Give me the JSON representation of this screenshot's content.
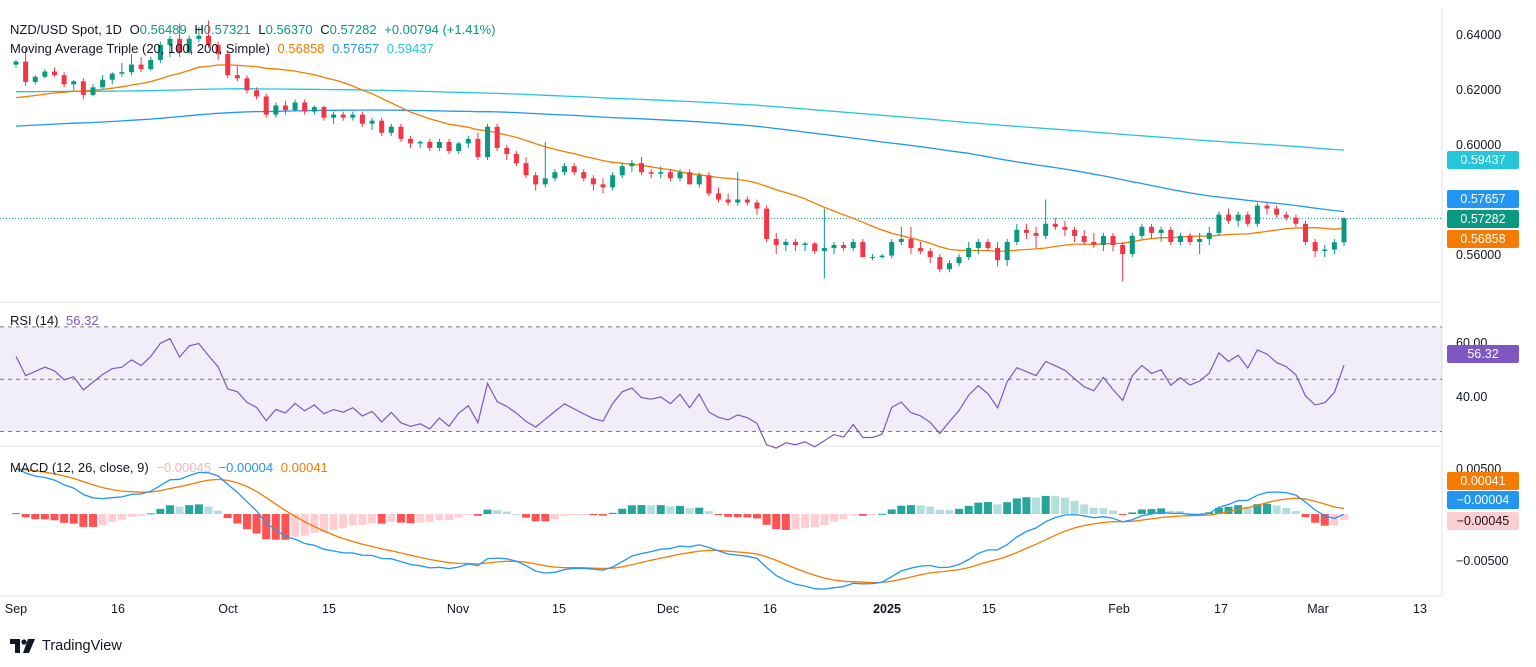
{
  "header": {
    "symbol": "NZD/USD Spot, 1D",
    "o_label": "O",
    "open": "0.56489",
    "h_label": "H",
    "high": "0.57321",
    "l_label": "L",
    "low": "0.56370",
    "c_label": "C",
    "close": "0.57282",
    "change": "+0.00794 (+1.41%)",
    "ma_label": "Moving Average Triple (20, 100, 200, Simple)",
    "ma20": "0.56858",
    "ma100": "0.57657",
    "ma200": "0.59437",
    "rsi_label": "RSI (14)",
    "rsi_value": "56.32",
    "macd_label": "MACD (12, 26, close, 9)",
    "macd_hist": "−0.00045",
    "macd_line": "−0.00004",
    "macd_signal": "0.00041"
  },
  "colors": {
    "up": "#089981",
    "down": "#f23645",
    "ma20": "#f57c00",
    "ma100": "#2196f3",
    "ma200": "#26c6da",
    "rsi": "#7e57c2",
    "macd": "#2196f3",
    "signal": "#f57c00",
    "hist_up_strong": "#26a69a",
    "hist_up_weak": "#b2dfdb",
    "hist_dn_strong": "#ff5252",
    "hist_dn_weak": "#ffcdd2"
  },
  "axes": {
    "price_ticks": [
      "0.64000",
      "0.62000",
      "0.60000",
      "0.56000"
    ],
    "rsi_ticks": [
      "60.00",
      "40.00"
    ],
    "macd_ticks": [
      "0.00500",
      "−0.00500"
    ],
    "x_ticks": [
      "Sep",
      "16",
      "Oct",
      "15",
      "Nov",
      "15",
      "Dec",
      "16",
      "2025",
      "15",
      "Feb",
      "17",
      "Mar",
      "13"
    ],
    "price_range": [
      0.5485,
      0.6415
    ],
    "rsi_range": [
      26,
      78
    ],
    "macd_range": [
      -0.0078,
      0.0062
    ]
  },
  "badges": {
    "ma200": "0.59437",
    "ma100": "0.57657",
    "close": "0.57282",
    "ma20": "0.56858",
    "rsi": "56.32",
    "signal": "0.00041",
    "macd": "−0.00004",
    "hist": "−0.00045"
  },
  "footer": {
    "brand": "TradingView"
  },
  "chart_data": {
    "type": "candlestick",
    "title": "NZD/USD Spot, 1D",
    "x_dates": [
      "Sep",
      "",
      "",
      "",
      "",
      "",
      "",
      "",
      "",
      "16",
      "",
      "",
      "",
      "",
      "",
      "",
      "",
      "",
      "",
      "",
      "Oct",
      "",
      "",
      "",
      "",
      "",
      "",
      "",
      "",
      "15",
      "",
      "",
      "",
      "",
      "",
      "",
      "",
      "",
      "",
      "",
      "",
      "",
      "Nov",
      "",
      "",
      "",
      "",
      "",
      "",
      "",
      "",
      "15",
      "",
      "",
      "",
      "",
      "",
      "",
      "",
      "",
      "",
      "Dec",
      "",
      "",
      "",
      "",
      "",
      "",
      "",
      "",
      "",
      "",
      "16",
      "",
      "",
      "",
      "",
      "",
      "",
      "",
      "",
      "",
      "",
      "",
      "",
      "2025",
      "",
      "",
      "",
      "",
      "",
      "",
      "",
      "",
      "15",
      "",
      "",
      "",
      "",
      "",
      "",
      "",
      "",
      "",
      "",
      "",
      "Feb",
      "",
      "",
      "",
      "",
      "",
      "",
      "",
      "",
      "17",
      "",
      "",
      "",
      "",
      "",
      "",
      "",
      "",
      "",
      "Mar"
    ],
    "ohlc": [
      [
        0.6235,
        0.625,
        0.6225,
        0.6245
      ],
      [
        0.6245,
        0.629,
        0.6165,
        0.6178
      ],
      [
        0.6178,
        0.62,
        0.617,
        0.6195
      ],
      [
        0.6195,
        0.622,
        0.619,
        0.6212
      ],
      [
        0.6212,
        0.6225,
        0.6195,
        0.62
      ],
      [
        0.62,
        0.621,
        0.616,
        0.617
      ],
      [
        0.617,
        0.6185,
        0.615,
        0.618
      ],
      [
        0.618,
        0.619,
        0.612,
        0.6135
      ],
      [
        0.6135,
        0.617,
        0.613,
        0.616
      ],
      [
        0.616,
        0.62,
        0.6155,
        0.6185
      ],
      [
        0.6185,
        0.621,
        0.617,
        0.6205
      ],
      [
        0.6205,
        0.624,
        0.6195,
        0.621
      ],
      [
        0.621,
        0.627,
        0.62,
        0.6235
      ],
      [
        0.6235,
        0.626,
        0.621,
        0.622
      ],
      [
        0.622,
        0.626,
        0.6215,
        0.625
      ],
      [
        0.625,
        0.631,
        0.624,
        0.63
      ],
      [
        0.63,
        0.633,
        0.626,
        0.632
      ],
      [
        0.632,
        0.637,
        0.626,
        0.6275
      ],
      [
        0.6275,
        0.633,
        0.627,
        0.632
      ],
      [
        0.632,
        0.636,
        0.631,
        0.633
      ],
      [
        0.633,
        0.638,
        0.629,
        0.63
      ],
      [
        0.63,
        0.631,
        0.625,
        0.627
      ],
      [
        0.627,
        0.628,
        0.619,
        0.62
      ],
      [
        0.62,
        0.623,
        0.618,
        0.619
      ],
      [
        0.619,
        0.62,
        0.614,
        0.615
      ],
      [
        0.615,
        0.616,
        0.612,
        0.613
      ],
      [
        0.613,
        0.614,
        0.606,
        0.607
      ],
      [
        0.607,
        0.611,
        0.606,
        0.61
      ],
      [
        0.61,
        0.6115,
        0.607,
        0.6085
      ],
      [
        0.6085,
        0.612,
        0.608,
        0.611
      ],
      [
        0.611,
        0.612,
        0.607,
        0.608
      ],
      [
        0.608,
        0.61,
        0.607,
        0.6095
      ],
      [
        0.6095,
        0.61,
        0.605,
        0.606
      ],
      [
        0.606,
        0.608,
        0.604,
        0.607
      ],
      [
        0.607,
        0.608,
        0.605,
        0.606
      ],
      [
        0.606,
        0.608,
        0.605,
        0.607
      ],
      [
        0.607,
        0.608,
        0.603,
        0.604
      ],
      [
        0.604,
        0.606,
        0.602,
        0.605
      ],
      [
        0.605,
        0.606,
        0.6,
        0.601
      ],
      [
        0.601,
        0.604,
        0.6,
        0.603
      ],
      [
        0.603,
        0.604,
        0.598,
        0.599
      ],
      [
        0.599,
        0.6,
        0.596,
        0.5975
      ],
      [
        0.5975,
        0.5985,
        0.596,
        0.598
      ],
      [
        0.598,
        0.599,
        0.595,
        0.596
      ],
      [
        0.596,
        0.599,
        0.595,
        0.598
      ],
      [
        0.598,
        0.599,
        0.594,
        0.595
      ],
      [
        0.595,
        0.598,
        0.594,
        0.5975
      ],
      [
        0.5975,
        0.6,
        0.596,
        0.599
      ],
      [
        0.599,
        0.601,
        0.592,
        0.593
      ],
      [
        0.593,
        0.604,
        0.592,
        0.603
      ],
      [
        0.603,
        0.604,
        0.595,
        0.596
      ],
      [
        0.596,
        0.597,
        0.592,
        0.594
      ],
      [
        0.594,
        0.595,
        0.59,
        0.591
      ],
      [
        0.591,
        0.593,
        0.586,
        0.587
      ],
      [
        0.587,
        0.588,
        0.582,
        0.584
      ],
      [
        0.584,
        0.598,
        0.583,
        0.586
      ],
      [
        0.586,
        0.589,
        0.585,
        0.588
      ],
      [
        0.588,
        0.591,
        0.587,
        0.59
      ],
      [
        0.59,
        0.591,
        0.587,
        0.588
      ],
      [
        0.588,
        0.589,
        0.585,
        0.586
      ],
      [
        0.586,
        0.587,
        0.582,
        0.584
      ],
      [
        0.584,
        0.586,
        0.581,
        0.583
      ],
      [
        0.583,
        0.588,
        0.582,
        0.587
      ],
      [
        0.587,
        0.591,
        0.586,
        0.59
      ],
      [
        0.59,
        0.592,
        0.588,
        0.591
      ],
      [
        0.591,
        0.593,
        0.587,
        0.588
      ],
      [
        0.588,
        0.589,
        0.586,
        0.5875
      ],
      [
        0.5875,
        0.59,
        0.586,
        0.588
      ],
      [
        0.588,
        0.589,
        0.585,
        0.586
      ],
      [
        0.586,
        0.589,
        0.585,
        0.588
      ],
      [
        0.588,
        0.589,
        0.584,
        0.584
      ],
      [
        0.584,
        0.588,
        0.583,
        0.587
      ],
      [
        0.587,
        0.588,
        0.58,
        0.581
      ],
      [
        0.581,
        0.583,
        0.578,
        0.579
      ],
      [
        0.579,
        0.581,
        0.577,
        0.578
      ],
      [
        0.578,
        0.588,
        0.577,
        0.579
      ],
      [
        0.579,
        0.58,
        0.577,
        0.578
      ],
      [
        0.578,
        0.579,
        0.574,
        0.576
      ],
      [
        0.576,
        0.577,
        0.565,
        0.566
      ],
      [
        0.566,
        0.568,
        0.561,
        0.564
      ],
      [
        0.564,
        0.566,
        0.562,
        0.565
      ],
      [
        0.565,
        0.566,
        0.562,
        0.564
      ],
      [
        0.564,
        0.565,
        0.562,
        0.5645
      ],
      [
        0.5645,
        0.565,
        0.561,
        0.562
      ],
      [
        0.562,
        0.576,
        0.553,
        0.563
      ],
      [
        0.563,
        0.565,
        0.561,
        0.564
      ],
      [
        0.564,
        0.565,
        0.562,
        0.563
      ],
      [
        0.563,
        0.566,
        0.562,
        0.565
      ],
      [
        0.565,
        0.566,
        0.56,
        0.56
      ],
      [
        0.56,
        0.561,
        0.559,
        0.56
      ],
      [
        0.56,
        0.561,
        0.5595,
        0.5605
      ],
      [
        0.5605,
        0.566,
        0.5595,
        0.565
      ],
      [
        0.565,
        0.57,
        0.564,
        0.566
      ],
      [
        0.566,
        0.57,
        0.561,
        0.563
      ],
      [
        0.563,
        0.565,
        0.561,
        0.562
      ],
      [
        0.562,
        0.563,
        0.558,
        0.56
      ],
      [
        0.56,
        0.561,
        0.555,
        0.556
      ],
      [
        0.556,
        0.559,
        0.555,
        0.558
      ],
      [
        0.558,
        0.561,
        0.557,
        0.56
      ],
      [
        0.56,
        0.565,
        0.559,
        0.563
      ],
      [
        0.563,
        0.566,
        0.561,
        0.565
      ],
      [
        0.565,
        0.566,
        0.562,
        0.563
      ],
      [
        0.563,
        0.565,
        0.557,
        0.559
      ],
      [
        0.559,
        0.566,
        0.557,
        0.565
      ],
      [
        0.565,
        0.571,
        0.564,
        0.569
      ],
      [
        0.569,
        0.571,
        0.566,
        0.568
      ],
      [
        0.568,
        0.57,
        0.563,
        0.567
      ],
      [
        0.567,
        0.579,
        0.566,
        0.571
      ],
      [
        0.571,
        0.573,
        0.569,
        0.57
      ],
      [
        0.57,
        0.572,
        0.567,
        0.569
      ],
      [
        0.569,
        0.57,
        0.565,
        0.567
      ],
      [
        0.567,
        0.569,
        0.564,
        0.565
      ],
      [
        0.565,
        0.568,
        0.563,
        0.564
      ],
      [
        0.564,
        0.568,
        0.562,
        0.567
      ],
      [
        0.567,
        0.568,
        0.562,
        0.564
      ],
      [
        0.564,
        0.565,
        0.552,
        0.561
      ],
      [
        0.561,
        0.568,
        0.56,
        0.567
      ],
      [
        0.567,
        0.571,
        0.566,
        0.57
      ],
      [
        0.57,
        0.571,
        0.566,
        0.568
      ],
      [
        0.568,
        0.57,
        0.565,
        0.569
      ],
      [
        0.569,
        0.57,
        0.564,
        0.565
      ],
      [
        0.565,
        0.568,
        0.564,
        0.567
      ],
      [
        0.567,
        0.568,
        0.564,
        0.565
      ],
      [
        0.565,
        0.568,
        0.561,
        0.566
      ],
      [
        0.566,
        0.57,
        0.564,
        0.568
      ],
      [
        0.568,
        0.575,
        0.567,
        0.574
      ],
      [
        0.574,
        0.576,
        0.571,
        0.572
      ],
      [
        0.572,
        0.575,
        0.57,
        0.574
      ],
      [
        0.574,
        0.575,
        0.57,
        0.571
      ],
      [
        0.571,
        0.578,
        0.57,
        0.577
      ],
      [
        0.577,
        0.578,
        0.574,
        0.576
      ],
      [
        0.576,
        0.577,
        0.573,
        0.574
      ],
      [
        0.574,
        0.575,
        0.572,
        0.573
      ],
      [
        0.573,
        0.574,
        0.57,
        0.571
      ],
      [
        0.571,
        0.572,
        0.564,
        0.565
      ],
      [
        0.565,
        0.566,
        0.56,
        0.562
      ],
      [
        0.562,
        0.564,
        0.56,
        0.5625
      ],
      [
        0.5625,
        0.566,
        0.561,
        0.5649
      ],
      [
        0.5649,
        0.5732,
        0.5637,
        0.5728
      ]
    ],
    "rsi_range": [
      26,
      78
    ],
    "macd_range": [
      -0.0078,
      0.0062
    ]
  }
}
